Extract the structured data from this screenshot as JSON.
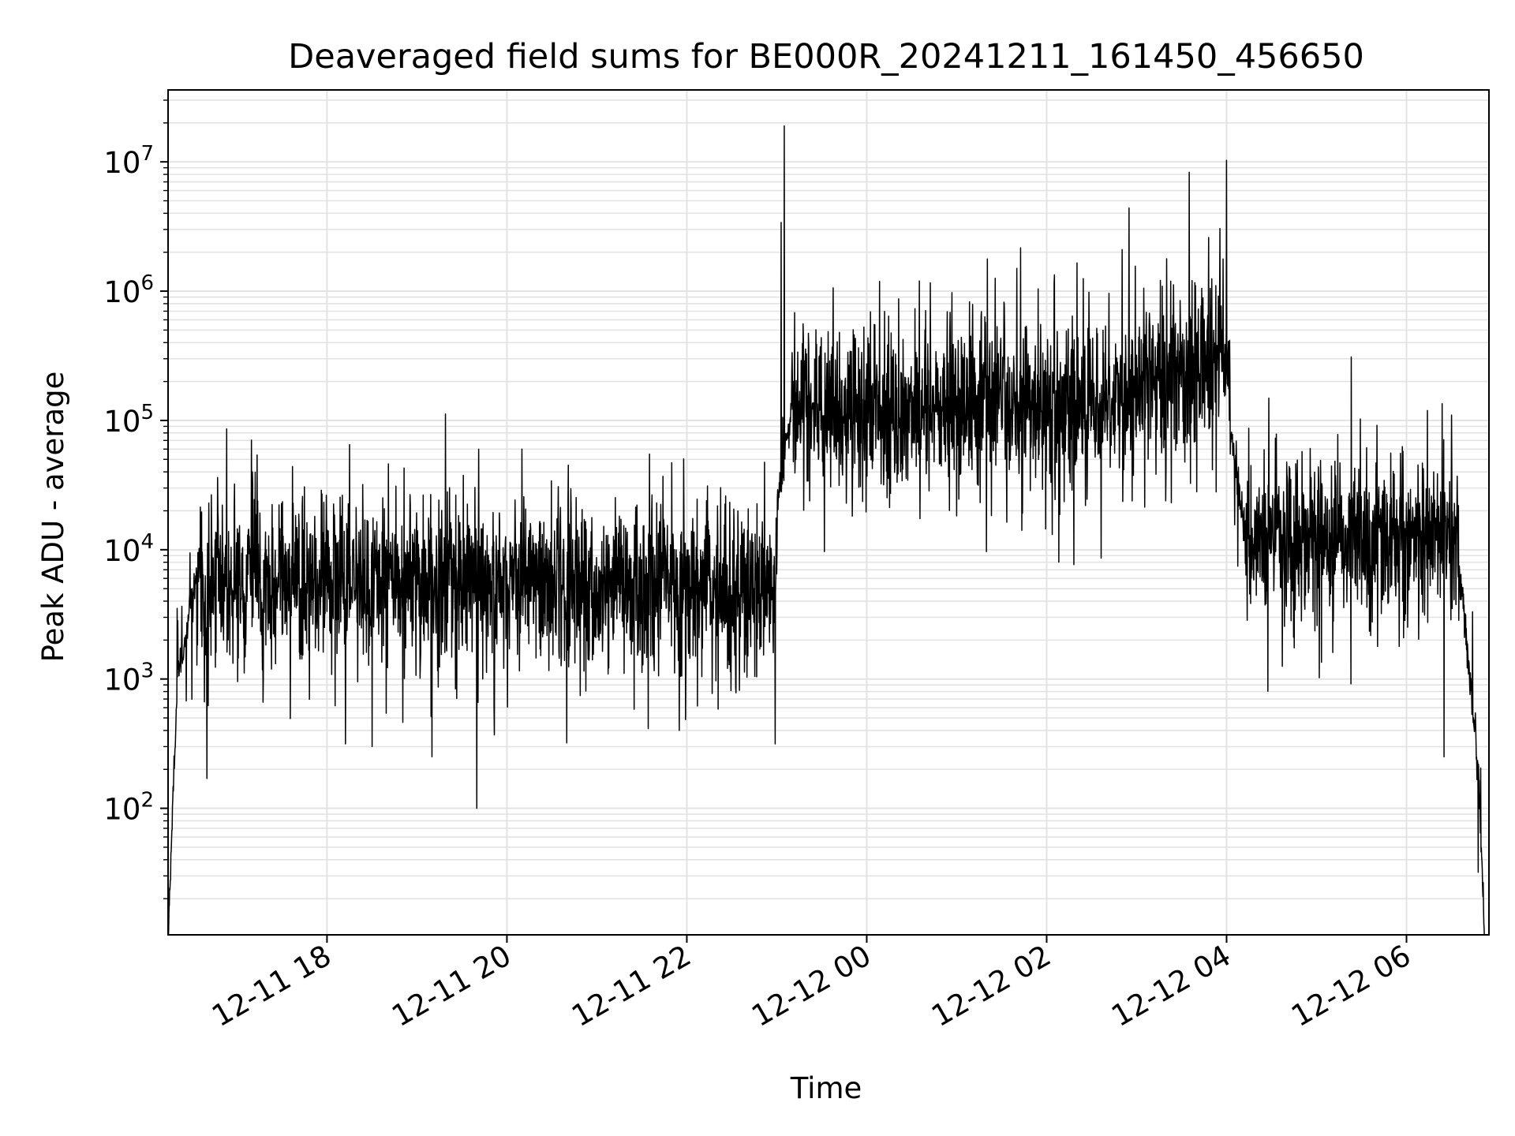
{
  "chart_data": {
    "type": "line",
    "title": "Deaveraged field sums for BE000R_20241211_161450_456650",
    "xlabel": "Time",
    "ylabel": "Peak ADU - average",
    "yscale": "log",
    "grid": true,
    "legend": "none",
    "line_color": "#000000",
    "grid_color": "#e3e3e3",
    "xlim": [
      "2024-12-11 16:14",
      "2024-12-12 06:55"
    ],
    "ylim": [
      10.5,
      36000000
    ],
    "x_ticks": [
      {
        "value": "2024-12-11 18:00",
        "label": "12-11 18"
      },
      {
        "value": "2024-12-11 20:00",
        "label": "12-11 20"
      },
      {
        "value": "2024-12-11 22:00",
        "label": "12-11 22"
      },
      {
        "value": "2024-12-12 00:00",
        "label": "12-12 00"
      },
      {
        "value": "2024-12-12 02:00",
        "label": "12-12 02"
      },
      {
        "value": "2024-12-12 04:00",
        "label": "12-12 04"
      },
      {
        "value": "2024-12-12 06:00",
        "label": "12-12 06"
      }
    ],
    "y_ticks": [
      {
        "value": 100,
        "base": "10",
        "exp": "2"
      },
      {
        "value": 1000,
        "base": "10",
        "exp": "3"
      },
      {
        "value": 10000,
        "base": "10",
        "exp": "4"
      },
      {
        "value": 100000,
        "base": "10",
        "exp": "5"
      },
      {
        "value": 1000000,
        "base": "10",
        "exp": "6"
      },
      {
        "value": 10000000,
        "base": "10",
        "exp": "7"
      }
    ],
    "segments": [
      {
        "start": "2024-12-11 16:14",
        "end": "2024-12-11 16:20",
        "from": 10,
        "to": 800
      },
      {
        "start": "2024-12-11 16:20",
        "end": "2024-12-11 16:35",
        "from": 1000,
        "to": 8000
      },
      {
        "start": "2024-12-11 16:35",
        "end": "2024-12-11 23:00",
        "from": 6000,
        "to": 4500
      },
      {
        "start": "2024-12-11 23:00",
        "end": "2024-12-11 23:10",
        "from": 20000,
        "to": 120000
      },
      {
        "start": "2024-12-11 23:10",
        "end": "2024-12-12 02:30",
        "from": 120000,
        "to": 130000
      },
      {
        "start": "2024-12-12 02:30",
        "end": "2024-12-12 04:02",
        "from": 150000,
        "to": 280000
      },
      {
        "start": "2024-12-12 04:02",
        "end": "2024-12-12 04:12",
        "from": 100000,
        "to": 15000
      },
      {
        "start": "2024-12-12 04:12",
        "end": "2024-12-12 06:35",
        "from": 12000,
        "to": 12000
      },
      {
        "start": "2024-12-12 06:35",
        "end": "2024-12-12 06:48",
        "from": 8000,
        "to": 200
      },
      {
        "start": "2024-12-12 06:48",
        "end": "2024-12-12 06:52",
        "from": 200,
        "to": 10
      }
    ],
    "peaks": [
      {
        "time": "2024-12-11 18:15",
        "value": 65000
      },
      {
        "time": "2024-12-11 20:10",
        "value": 60000
      },
      {
        "time": "2024-12-11 21:35",
        "value": 55000
      },
      {
        "time": "2024-12-11 23:05",
        "value": 19000000
      },
      {
        "time": "2024-12-11 23:03",
        "value": 3400000
      },
      {
        "time": "2024-12-12 00:35",
        "value": 1200000
      },
      {
        "time": "2024-12-12 01:40",
        "value": 1500000
      },
      {
        "time": "2024-12-12 02:55",
        "value": 4400000
      },
      {
        "time": "2024-12-12 03:35",
        "value": 8300000
      },
      {
        "time": "2024-12-12 04:00",
        "value": 10300000
      },
      {
        "time": "2024-12-12 03:48",
        "value": 2600000
      },
      {
        "time": "2024-12-12 06:30",
        "value": 110000
      }
    ],
    "dips": [
      {
        "time": "2024-12-11 16:40",
        "value": 170
      },
      {
        "time": "2024-12-11 19:40",
        "value": 100
      },
      {
        "time": "2024-12-11 18:30",
        "value": 300
      },
      {
        "time": "2024-12-11 19:10",
        "value": 250
      },
      {
        "time": "2024-12-11 20:40",
        "value": 320
      },
      {
        "time": "2024-12-11 21:55",
        "value": 400
      },
      {
        "time": "2024-12-12 03:40",
        "value": 28000
      },
      {
        "time": "2024-12-12 06:25",
        "value": 250
      }
    ]
  }
}
